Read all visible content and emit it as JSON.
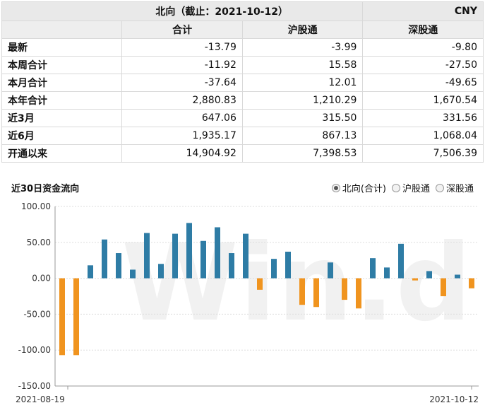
{
  "header": {
    "title": "北向（截止：2021-10-12）",
    "currency": "CNY"
  },
  "table": {
    "columns": [
      "合计",
      "沪股通",
      "深股通"
    ],
    "rows": [
      {
        "label": "最新",
        "values": [
          "-13.79",
          "-3.99",
          "-9.80"
        ]
      },
      {
        "label": "本周合计",
        "values": [
          "-11.92",
          "15.58",
          "-27.50"
        ]
      },
      {
        "label": "本月合计",
        "values": [
          "-37.64",
          "12.01",
          "-49.65"
        ]
      },
      {
        "label": "本年合计",
        "values": [
          "2,880.83",
          "1,210.29",
          "1,670.54"
        ]
      },
      {
        "label": "近3月",
        "values": [
          "647.06",
          "315.50",
          "331.56"
        ]
      },
      {
        "label": "近6月",
        "values": [
          "1,935.17",
          "867.13",
          "1,068.04"
        ]
      },
      {
        "label": "开通以来",
        "values": [
          "14,904.92",
          "7,398.53",
          "7,506.39"
        ]
      }
    ]
  },
  "chart_title": "近30日资金流向",
  "legend": [
    {
      "label": "北向(合计)",
      "selected": true
    },
    {
      "label": "沪股通",
      "selected": false
    },
    {
      "label": "深股通",
      "selected": false
    }
  ],
  "watermark": "Win.d",
  "colors": {
    "positive": "#2e7ca5",
    "negative": "#f0941f",
    "grid": "#dddddd"
  },
  "chart_data": {
    "type": "bar",
    "x_start_label": "2021-08-19",
    "x_end_label": "2021-10-12",
    "ylim": [
      -150,
      100
    ],
    "yticks": [
      "100.00",
      "50.00",
      "0.00",
      "-50.00",
      "-100.00",
      "-150.00"
    ],
    "values": [
      -107,
      -107,
      18,
      54,
      35,
      12,
      63,
      20,
      62,
      77,
      52,
      71,
      35,
      62,
      -16,
      27,
      37,
      -37,
      -40,
      22,
      -30,
      -42,
      28,
      15,
      48,
      -3,
      10,
      -25,
      5,
      -14
    ]
  }
}
